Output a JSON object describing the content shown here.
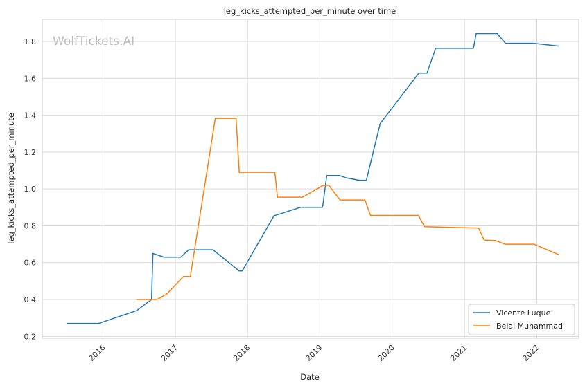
{
  "chart_data": {
    "type": "line",
    "title": "leg_kicks_attempted_per_minute over time",
    "xlabel": "Date",
    "ylabel": "leg_kicks_attempted_per_minute",
    "watermark": "WolfTickets.AI",
    "xlim": [
      "2015-03-01",
      "2022-08-01"
    ],
    "ylim": [
      0.19,
      1.92
    ],
    "x_ticks": [
      "2016-01-01",
      "2017-01-01",
      "2018-01-01",
      "2019-01-01",
      "2020-01-01",
      "2021-01-01",
      "2022-01-01"
    ],
    "x_tick_labels": [
      "2016",
      "2017",
      "2018",
      "2019",
      "2020",
      "2021",
      "2022"
    ],
    "y_ticks": [
      0.2,
      0.4,
      0.6,
      0.8,
      1.0,
      1.2,
      1.4,
      1.6,
      1.8
    ],
    "y_tick_labels": [
      "0.2",
      "0.4",
      "0.6",
      "0.8",
      "1.0",
      "1.2",
      "1.4",
      "1.6",
      "1.8"
    ],
    "grid": true,
    "legend_position": "bottom-right",
    "series": [
      {
        "name": "Vicente Luque",
        "color": "#1f77b4",
        "x": [
          "2015-07-01",
          "2015-12-10",
          "2016-06-20",
          "2016-09-03",
          "2016-09-10",
          "2016-11-05",
          "2017-01-28",
          "2017-03-10",
          "2017-07-10",
          "2017-11-20",
          "2017-12-05",
          "2018-05-15",
          "2018-06-01",
          "2018-09-25",
          "2019-01-15",
          "2019-02-05",
          "2019-04-10",
          "2019-05-15",
          "2019-07-20",
          "2019-08-24",
          "2019-11-02",
          "2020-05-15",
          "2020-06-25",
          "2020-08-08",
          "2021-02-15",
          "2021-03-01",
          "2021-06-15",
          "2021-07-27",
          "2021-12-15",
          "2022-04-23"
        ],
        "y": [
          0.27,
          0.27,
          0.34,
          0.4,
          0.65,
          0.63,
          0.63,
          0.67,
          0.67,
          0.555,
          0.555,
          0.855,
          0.86,
          0.9,
          0.9,
          1.073,
          1.073,
          1.06,
          1.047,
          1.047,
          1.355,
          1.628,
          1.628,
          1.763,
          1.763,
          1.843,
          1.843,
          1.79,
          1.79,
          1.775
        ]
      },
      {
        "name": "Belal Muhammad",
        "color": "#ff7f0e",
        "x": [
          "2016-06-18",
          "2016-08-30",
          "2016-09-30",
          "2016-11-19",
          "2017-02-11",
          "2017-03-18",
          "2017-07-22",
          "2017-11-04",
          "2017-11-20",
          "2018-05-19",
          "2018-06-01",
          "2018-10-06",
          "2019-01-19",
          "2019-02-15",
          "2019-04-13",
          "2019-08-17",
          "2019-09-14",
          "2020-05-13",
          "2020-06-13",
          "2021-02-20",
          "2021-03-13",
          "2021-04-10",
          "2021-06-06",
          "2021-07-24",
          "2021-12-18",
          "2022-04-23"
        ],
        "y": [
          0.4,
          0.4,
          0.4,
          0.43,
          0.525,
          0.525,
          1.383,
          1.383,
          1.09,
          1.09,
          0.955,
          0.955,
          1.02,
          1.02,
          0.94,
          0.94,
          0.856,
          0.856,
          0.795,
          0.788,
          0.788,
          0.722,
          0.72,
          0.7,
          0.7,
          0.643
        ]
      }
    ]
  }
}
